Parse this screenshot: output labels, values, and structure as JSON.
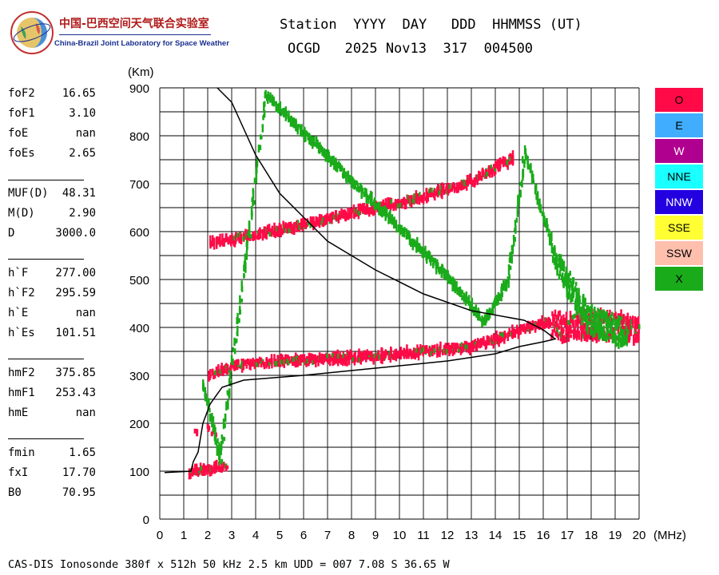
{
  "logo": {
    "org_cn": "中国-巴西空间天气联合实验室",
    "org_en": "China-Brazil Joint Laboratory for Space Weather"
  },
  "header": {
    "line1": "Station  YYYY  DAY   DDD  HHMMSS (UT)",
    "line2": "OCGD   2025 Nov13  317  004500"
  },
  "params": {
    "group1": [
      {
        "label": "foF2",
        "value": "16.65"
      },
      {
        "label": "foF1",
        "value": "3.10"
      },
      {
        "label": "foE",
        "value": "nan"
      },
      {
        "label": "foEs",
        "value": "2.65"
      }
    ],
    "group2": [
      {
        "label": "MUF(D)",
        "value": "48.31"
      },
      {
        "label": "M(D)",
        "value": "2.90"
      },
      {
        "label": "D",
        "value": "3000.0"
      }
    ],
    "group3": [
      {
        "label": "h`F",
        "value": "277.00"
      },
      {
        "label": "h`F2",
        "value": "295.59"
      },
      {
        "label": "h`E",
        "value": "nan"
      },
      {
        "label": "h`Es",
        "value": "101.51"
      }
    ],
    "group4": [
      {
        "label": "hmF2",
        "value": "375.85"
      },
      {
        "label": "hmF1",
        "value": "253.43"
      },
      {
        "label": "hmE",
        "value": "nan"
      }
    ],
    "group5": [
      {
        "label": "fmin",
        "value": "1.65"
      },
      {
        "label": "fxI",
        "value": "17.70"
      },
      {
        "label": "B0",
        "value": "70.95"
      }
    ]
  },
  "legend": [
    {
      "label": "O",
      "color": "#ff0a47"
    },
    {
      "label": "E",
      "color": "#41adff"
    },
    {
      "label": "W",
      "color": "#b0008f"
    },
    {
      "label": "NNE",
      "color": "#1affff"
    },
    {
      "label": "NNW",
      "color": "#2200e0"
    },
    {
      "label": "SSE",
      "color": "#ffff33"
    },
    {
      "label": "SSW",
      "color": "#ffbfad"
    },
    {
      "label": "X",
      "color": "#1aab1a"
    }
  ],
  "footer": "CAS-DIS Ionosonde 380f x 512h 50 kHz 2.5 km UDD = 007 7.08 S 36.65 W",
  "chart_data": {
    "type": "scatter",
    "xlabel": "(MHz)",
    "ylabel": "(Km)",
    "xlim": [
      0,
      20
    ],
    "ylim": [
      0,
      900
    ],
    "x_ticks": [
      "0",
      "1",
      "2",
      "3",
      "4",
      "5",
      "6",
      "7",
      "8",
      "9",
      "10",
      "11",
      "12",
      "13",
      "14",
      "15",
      "16",
      "17",
      "18",
      "19",
      "20"
    ],
    "y_ticks": [
      "0",
      "100",
      "200",
      "300",
      "400",
      "500",
      "600",
      "700",
      "800",
      "900"
    ],
    "grid": true,
    "traces": [
      {
        "kind": "O-mode F-layer trace",
        "color": "#ff0a47",
        "points": [
          [
            2.0,
            300
          ],
          [
            3,
            320
          ],
          [
            5,
            330
          ],
          [
            7,
            335
          ],
          [
            9,
            340
          ],
          [
            11,
            350
          ],
          [
            13,
            360
          ],
          [
            14,
            375
          ],
          [
            15,
            395
          ],
          [
            16,
            410
          ],
          [
            17,
            400
          ],
          [
            18,
            405
          ],
          [
            19,
            400
          ],
          [
            20,
            395
          ]
        ]
      },
      {
        "kind": "O-mode second-hop F-layer trace",
        "color": "#ff0a47",
        "points": [
          [
            2.1,
            575
          ],
          [
            4,
            595
          ],
          [
            6,
            615
          ],
          [
            8,
            640
          ],
          [
            10,
            660
          ],
          [
            12,
            690
          ],
          [
            13,
            705
          ],
          [
            14,
            735
          ],
          [
            14.8,
            755
          ]
        ]
      },
      {
        "kind": "O-mode Es trace",
        "color": "#ff0a47",
        "points": [
          [
            1.2,
            98
          ],
          [
            1.8,
            102
          ],
          [
            2.4,
            108
          ],
          [
            2.8,
            112
          ]
        ]
      },
      {
        "kind": "O-mode 200 km echoes",
        "color": "#ff0a47",
        "points": [
          [
            1.5,
            185
          ],
          [
            2.0,
            195
          ],
          [
            2.2,
            185
          ]
        ]
      },
      {
        "kind": "X-mode echoes",
        "color": "#1aab1a",
        "points": [
          [
            1.8,
            275
          ],
          [
            2.5,
            125
          ],
          [
            4.4,
            885
          ],
          [
            12.1,
            500
          ],
          [
            13.5,
            410
          ],
          [
            14.5,
            500
          ],
          [
            15.2,
            765
          ],
          [
            16.5,
            540
          ],
          [
            17.8,
            420
          ],
          [
            19.5,
            380
          ]
        ]
      }
    ],
    "profile_curve": {
      "color": "#000000",
      "points": [
        [
          0.2,
          97
        ],
        [
          1.3,
          100
        ],
        [
          1.4,
          120
        ],
        [
          1.6,
          140
        ],
        [
          1.8,
          200
        ],
        [
          2.1,
          240
        ],
        [
          2.6,
          275
        ],
        [
          3.5,
          290
        ],
        [
          6,
          300
        ],
        [
          9,
          315
        ],
        [
          12,
          330
        ],
        [
          14,
          345
        ],
        [
          15,
          360
        ],
        [
          16,
          370
        ],
        [
          16.5,
          376
        ],
        [
          16,
          395
        ],
        [
          15.2,
          415
        ],
        [
          13,
          435
        ],
        [
          11,
          470
        ],
        [
          9,
          520
        ],
        [
          7,
          580
        ],
        [
          5,
          680
        ],
        [
          4,
          760
        ],
        [
          3,
          870
        ],
        [
          2.4,
          900
        ]
      ]
    }
  }
}
